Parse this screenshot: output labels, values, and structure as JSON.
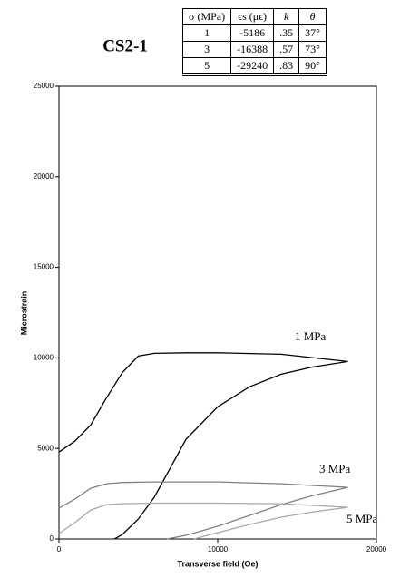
{
  "chart_data": {
    "type": "line",
    "title": "CS2-1",
    "xlabel": "Transverse field (Oe)",
    "ylabel": "Microstrain",
    "xlim": [
      0,
      20000
    ],
    "xticks": [
      0,
      10000,
      20000
    ],
    "ylim": [
      0,
      25000
    ],
    "yticks": [
      0,
      5000,
      10000,
      15000,
      20000,
      25000
    ],
    "series": [
      {
        "name": "1 MPa",
        "color": "#000000",
        "x": [
          0,
          1000,
          2000,
          3000,
          4000,
          5000,
          6000,
          8000,
          10000,
          14000,
          18200,
          16000,
          14000,
          12000,
          10000,
          8000,
          6000,
          5000,
          4000,
          3500
        ],
        "values": [
          4800,
          5400,
          6300,
          7800,
          9200,
          10100,
          10250,
          10280,
          10280,
          10200,
          9800,
          9500,
          9100,
          8400,
          7300,
          5500,
          2300,
          1100,
          250,
          0
        ]
      },
      {
        "name": "3 MPa",
        "color": "#808080",
        "x": [
          0,
          1000,
          2000,
          3000,
          4000,
          6000,
          10000,
          14000,
          18200,
          16000,
          14000,
          12000,
          10000,
          8000,
          6800
        ],
        "values": [
          1700,
          2200,
          2800,
          3050,
          3120,
          3150,
          3150,
          3050,
          2850,
          2400,
          1900,
          1300,
          700,
          200,
          0
        ]
      },
      {
        "name": "5 MPa",
        "color": "#a8a8a8",
        "x": [
          0,
          1000,
          2000,
          3000,
          4000,
          6000,
          10000,
          14000,
          18200,
          16000,
          14000,
          12000,
          10000,
          8500
        ],
        "values": [
          300,
          900,
          1600,
          1900,
          1950,
          1980,
          1980,
          1950,
          1750,
          1500,
          1200,
          800,
          350,
          0
        ]
      }
    ]
  },
  "table": {
    "header": [
      "σ (MPa)",
      "ϵs (μϵ)",
      "k",
      "θ"
    ],
    "rows": [
      [
        "1",
        "-5186",
        ".35",
        "37°"
      ],
      [
        "3",
        "-16388",
        ".57",
        "73°"
      ],
      [
        "5",
        "-29240",
        ".83",
        "90°"
      ]
    ]
  }
}
